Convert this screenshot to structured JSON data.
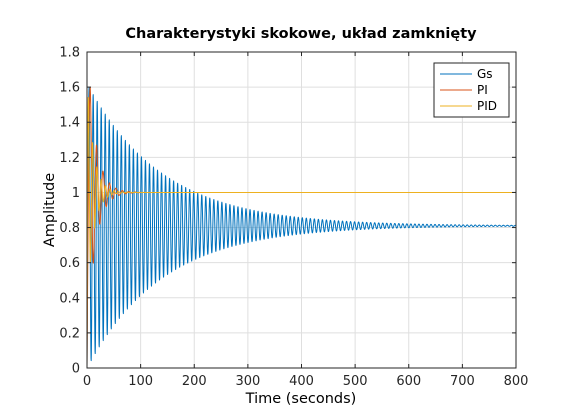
{
  "chart_data": {
    "type": "line",
    "title": "Charakterystyki skokowe, układ zamknięty",
    "xlabel": "Time (seconds)",
    "ylabel": "Amplitude",
    "xlim": [
      0,
      800
    ],
    "ylim": [
      0,
      1.8
    ],
    "x_ticks": [
      0,
      100,
      200,
      300,
      400,
      500,
      600,
      700,
      800
    ],
    "y_ticks": [
      0,
      0.2,
      0.4,
      0.6,
      0.8,
      1,
      1.2,
      1.4,
      1.6,
      1.8
    ],
    "grid": true,
    "legend_position": "top-right",
    "series": [
      {
        "name": "Gs",
        "color": "#0072BD",
        "model": "damped-oscillation",
        "final_value": 0.81,
        "peak": 1.6,
        "peak_time": 4,
        "period": 7.5,
        "settling_envelope_time_constant": 140,
        "duration": 800
      },
      {
        "name": "PI",
        "color": "#D95319",
        "model": "damped-oscillation",
        "final_value": 1.0,
        "peak": 1.6,
        "peak_time": 6,
        "period": 12,
        "settling_envelope_time_constant": 15,
        "duration": 100
      },
      {
        "name": "PID",
        "color": "#EDB120",
        "model": "damped-oscillation",
        "final_value": 1.0,
        "peak": 1.55,
        "peak_time": 2.5,
        "period": 8,
        "settling_envelope_time_constant": 12,
        "duration": 800
      }
    ]
  }
}
